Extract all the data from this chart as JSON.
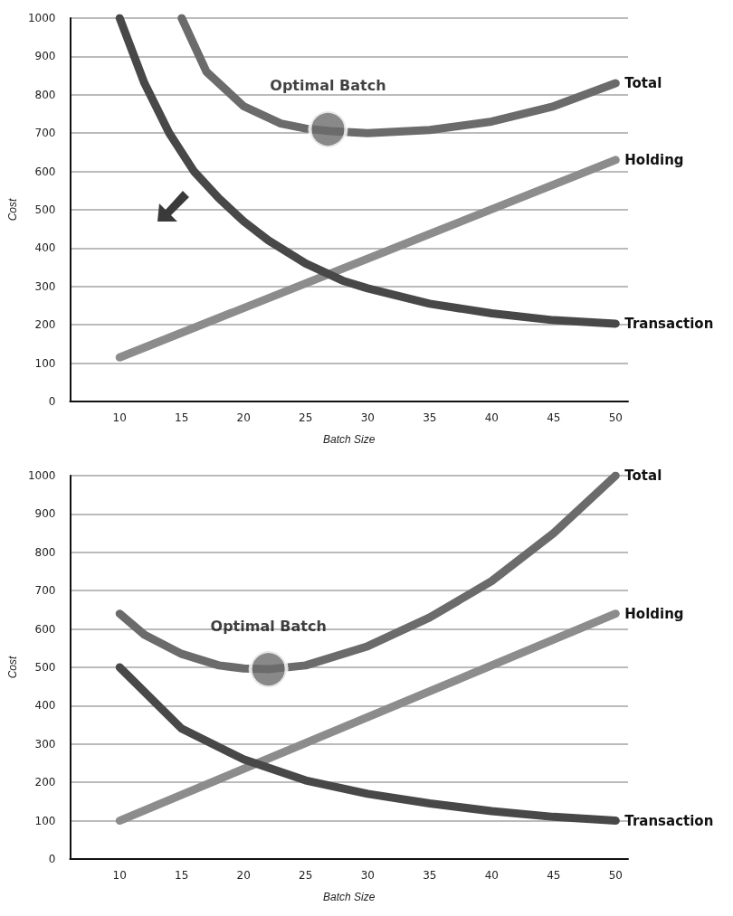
{
  "chart_data": [
    {
      "type": "line",
      "xlabel": "Batch Size",
      "ylabel": "Cost",
      "x": [
        10,
        12,
        14,
        16,
        18,
        20,
        22,
        25,
        28,
        30,
        35,
        40,
        45,
        50
      ],
      "xlim": [
        6,
        51
      ],
      "xticks": [
        10,
        15,
        20,
        25,
        30,
        35,
        40,
        45,
        50
      ],
      "ylim": [
        0,
        1000
      ],
      "yticks": [
        0,
        100,
        200,
        300,
        400,
        500,
        600,
        700,
        800,
        900,
        1000
      ],
      "grid": "y",
      "legend": false,
      "line_style": "solid",
      "annotations": [
        {
          "text": "Optimal Batch",
          "x": 26.8,
          "y": 710
        }
      ],
      "series": [
        {
          "name": "Total",
          "color": "#6b6b6b",
          "x": [
            15,
            17,
            20,
            23,
            25,
            27,
            30,
            35,
            40,
            45,
            50
          ],
          "values": [
            1000,
            860,
            770,
            725,
            712,
            705,
            700,
            708,
            730,
            770,
            830
          ]
        },
        {
          "name": "Holding",
          "color": "#8c8c8c",
          "x": [
            10,
            50
          ],
          "values": [
            115,
            630
          ]
        },
        {
          "name": "Transaction",
          "color": "#484848",
          "values": [
            1000,
            830,
            700,
            600,
            530,
            470,
            420,
            360,
            315,
            295,
            255,
            230,
            212,
            203
          ]
        },
        {
          "type": "scatter",
          "marker": "circle",
          "color": "#6b6b6b",
          "x": [
            26.8
          ],
          "values": [
            710
          ]
        }
      ]
    },
    {
      "type": "line",
      "xlabel": "Batch Size",
      "ylabel": "Cost",
      "x": [
        10,
        15,
        20,
        25,
        30,
        35,
        40,
        45,
        50
      ],
      "xlim": [
        6,
        51
      ],
      "xticks": [
        10,
        15,
        20,
        25,
        30,
        35,
        40,
        45,
        50
      ],
      "ylim": [
        0,
        1000
      ],
      "yticks": [
        0,
        100,
        200,
        300,
        400,
        500,
        600,
        700,
        800,
        900,
        1000
      ],
      "grid": "y",
      "legend": false,
      "line_style": "solid",
      "annotations": [
        {
          "text": "Optimal Batch",
          "x": 22,
          "y": 495
        }
      ],
      "series": [
        {
          "name": "Total",
          "color": "#6b6b6b",
          "x": [
            10,
            12,
            15,
            18,
            20,
            22,
            25,
            30,
            35,
            40,
            45,
            50
          ],
          "values": [
            640,
            585,
            535,
            505,
            497,
            495,
            505,
            555,
            630,
            725,
            850,
            1000
          ]
        },
        {
          "name": "Holding",
          "color": "#8c8c8c",
          "x": [
            10,
            50
          ],
          "values": [
            100,
            640
          ]
        },
        {
          "name": "Transaction",
          "color": "#484848",
          "values": [
            500,
            340,
            260,
            205,
            170,
            145,
            125,
            110,
            100
          ]
        },
        {
          "type": "scatter",
          "marker": "circle",
          "color": "#6b6b6b",
          "x": [
            22
          ],
          "values": [
            495
          ]
        }
      ]
    }
  ]
}
